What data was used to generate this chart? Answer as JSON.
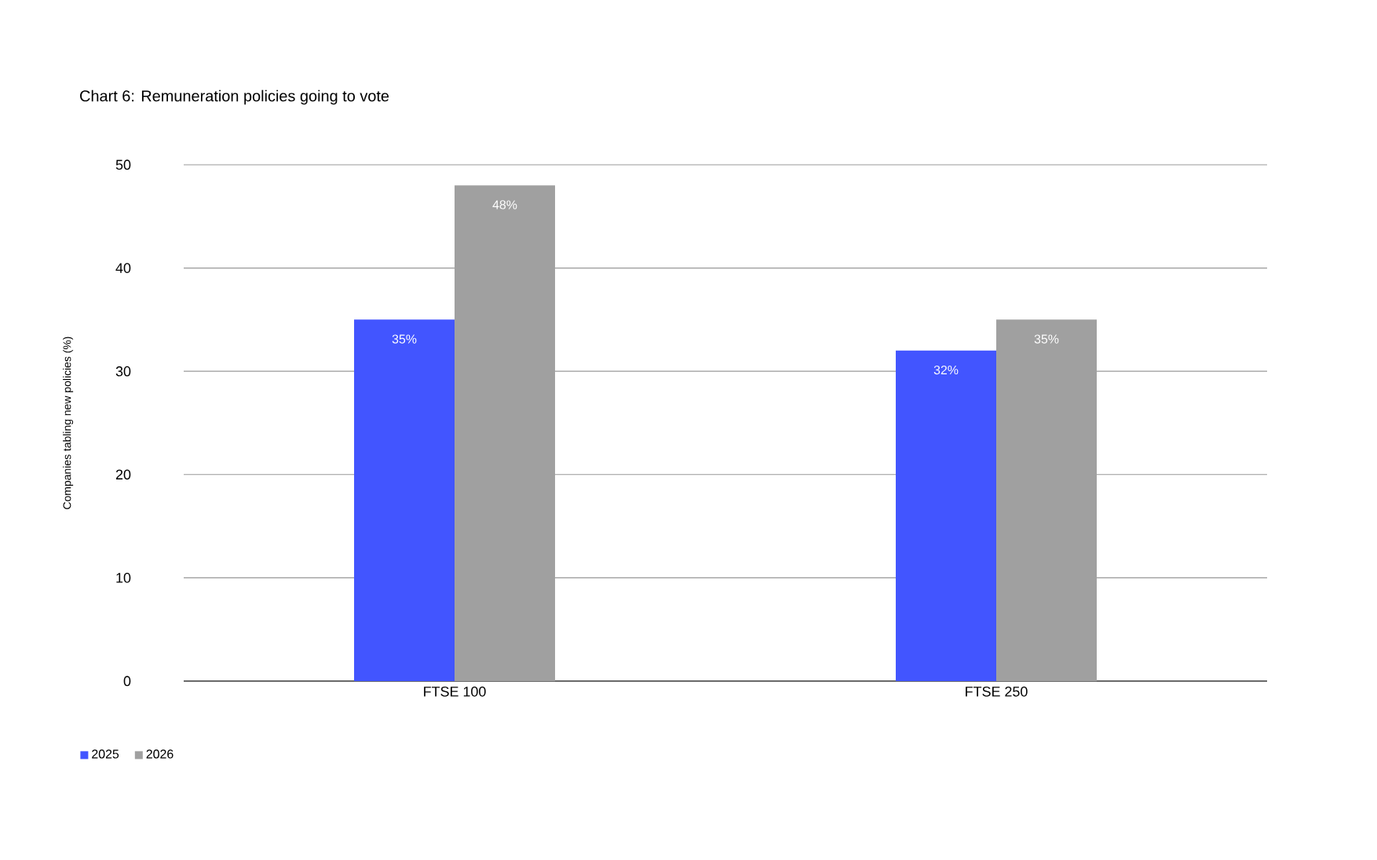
{
  "chart_data": {
    "type": "bar",
    "title": "Chart 6: Remuneration policies going to vote",
    "ylabel": "Companies tabling new policies (%)",
    "categories": [
      "FTSE 100",
      "FTSE 250"
    ],
    "series": [
      {
        "name": "2025",
        "color": "#4255ff",
        "values": [
          35,
          32
        ],
        "value_labels": [
          "35%",
          "32%"
        ]
      },
      {
        "name": "2026",
        "color": "#a0a0a0",
        "values": [
          48,
          35
        ],
        "value_labels": [
          "48%",
          "35%"
        ]
      }
    ],
    "ylim": [
      0,
      50
    ],
    "yticks": [
      0,
      10,
      20,
      30,
      40,
      50
    ],
    "grid": "y",
    "legend": "bottom left"
  }
}
